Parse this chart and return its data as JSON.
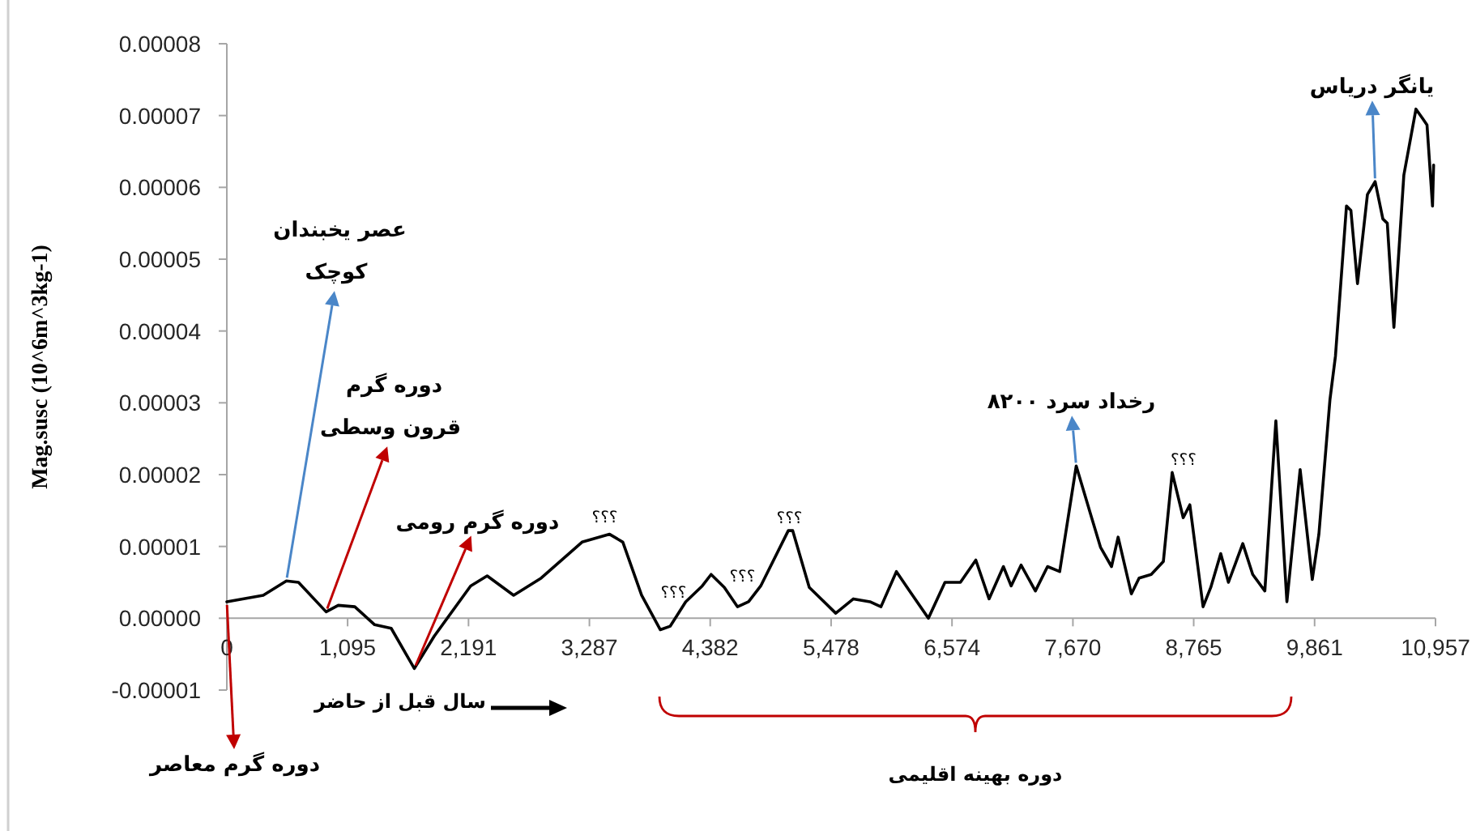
{
  "chart_data": {
    "type": "line",
    "xlabel": "سال قبل از حاضر",
    "ylabel": "Mag.susc (10^6m^3kg-1)",
    "color": "#000000",
    "xlim": [
      0,
      10957
    ],
    "xticks": [
      0,
      {
        "value": 1095,
        "label": "1,095"
      },
      {
        "value": 2191,
        "label": "2,191"
      },
      {
        "value": 3287,
        "label": "3,287"
      },
      {
        "value": 4382,
        "label": "4,382"
      },
      {
        "value": 5478,
        "label": "5,478"
      },
      {
        "value": 6574,
        "label": "6,574"
      },
      {
        "value": 7670,
        "label": "7,670"
      },
      {
        "value": 8765,
        "label": "8,765"
      },
      {
        "value": 9861,
        "label": "9,861"
      },
      {
        "value": 10957,
        "label": "10,957"
      }
    ],
    "ylim": [
      -1e-05,
      8e-05
    ],
    "yticks": [
      {
        "value": -1e-05,
        "label": "-0.00001"
      },
      {
        "value": 0,
        "label": "0.00000"
      },
      {
        "value": 1e-05,
        "label": "0.00001"
      },
      {
        "value": 2e-05,
        "label": "0.00002"
      },
      {
        "value": 3e-05,
        "label": "0.00003"
      },
      {
        "value": 4e-05,
        "label": "0.00004"
      },
      {
        "value": 5e-05,
        "label": "0.00005"
      },
      {
        "value": 6e-05,
        "label": "0.00006"
      },
      {
        "value": 7e-05,
        "label": "0.00007"
      },
      {
        "value": 8e-05,
        "label": "0.00008"
      }
    ],
    "x": [
      0,
      330,
      540,
      650,
      900,
      1010,
      1160,
      1340,
      1490,
      1700,
      1880,
      2210,
      2360,
      2600,
      2850,
      3220,
      3470,
      3590,
      3760,
      3930,
      4020,
      4160,
      4310,
      4390,
      4510,
      4630,
      4730,
      4840,
      5090,
      5130,
      5280,
      5520,
      5680,
      5830,
      5930,
      6070,
      6190,
      6360,
      6510,
      6650,
      6790,
      6910,
      7040,
      7110,
      7200,
      7330,
      7440,
      7550,
      7700,
      7840,
      7920,
      8020,
      8080,
      8200,
      8270,
      8380,
      8490,
      8570,
      8670,
      8730,
      8850,
      8920,
      9010,
      9080,
      9210,
      9300,
      9410,
      9510,
      9610,
      9730,
      9840,
      9900,
      10000,
      10050,
      10150,
      10190,
      10250,
      10340,
      10410,
      10480,
      10520,
      10580,
      10670,
      10780,
      10840,
      10880,
      10930,
      10940
    ],
    "values": [
      2.3e-06,
      3.2e-06,
      5.2e-06,
      5e-06,
      9e-07,
      1.8e-06,
      1.6e-06,
      -9e-07,
      -1.4e-06,
      -7e-06,
      -2.5e-06,
      4.5e-06,
      5.9e-06,
      3.2e-06,
      5.6e-06,
      1.06e-05,
      1.17e-05,
      1.06e-05,
      3.2e-06,
      -1.6e-06,
      -1.1e-06,
      2.3e-06,
      4.5e-06,
      6.1e-06,
      4.3e-06,
      1.6e-06,
      2.3e-06,
      4.5e-06,
      1.22e-05,
      1.22e-05,
      4.3e-06,
      7e-07,
      2.7e-06,
      2.3e-06,
      1.6e-06,
      6.5e-06,
      3.8e-06,
      0.0,
      5e-06,
      5e-06,
      8.1e-06,
      2.7e-06,
      7.2e-06,
      4.5e-06,
      7.4e-06,
      3.8e-06,
      7.2e-06,
      6.5e-06,
      2.12e-05,
      1.4e-05,
      9.9e-06,
      7.2e-06,
      1.13e-05,
      3.4e-06,
      5.6e-06,
      6.1e-06,
      7.9e-06,
      2.03e-05,
      1.4e-05,
      1.58e-05,
      1.6e-06,
      4.3e-06,
      9e-06,
      5e-06,
      1.04e-05,
      6.1e-06,
      3.8e-06,
      2.75e-05,
      2.3e-06,
      2.07e-05,
      5.4e-06,
      1.17e-05,
      3.04e-05,
      3.65e-05,
      5.74e-05,
      5.68e-05,
      4.66e-05,
      5.9e-05,
      6.08e-05,
      5.56e-05,
      5.5e-05,
      4.05e-05,
      6.17e-05,
      7.09e-05,
      6.96e-05,
      6.87e-05,
      5.74e-05,
      6.31e-05
    ],
    "annotations": [
      {
        "text": "عصر یخبندان کوچک",
        "x": 540,
        "y": 5.2e-06
      },
      {
        "text": "دوره گرم قرون وسطی",
        "x": 900,
        "y": 9e-07
      },
      {
        "text": "دوره گرم رومی",
        "x": 1700,
        "y": -7e-06
      },
      {
        "text": "؟؟؟",
        "x": 3470,
        "y": 1.17e-05
      },
      {
        "text": "؟؟؟",
        "x": 4020,
        "y": -1.1e-06
      },
      {
        "text": "؟؟؟",
        "x": 4630,
        "y": 1.6e-06
      },
      {
        "text": "؟؟؟",
        "x": 5130,
        "y": 1.22e-05
      },
      {
        "text": "؟؟؟",
        "x": 8570,
        "y": 2.03e-05
      },
      {
        "text": "رخداد سرد ۸۲۰۰",
        "x": 7700,
        "y": 2.12e-05
      },
      {
        "text": "یانگر دریاس",
        "x": 10410,
        "y": 6.08e-05
      },
      {
        "text": "دوره گرم معاصر",
        "x": 0,
        "y": 2.3e-06
      },
      "دوره بهینه اقلیمی"
    ]
  }
}
